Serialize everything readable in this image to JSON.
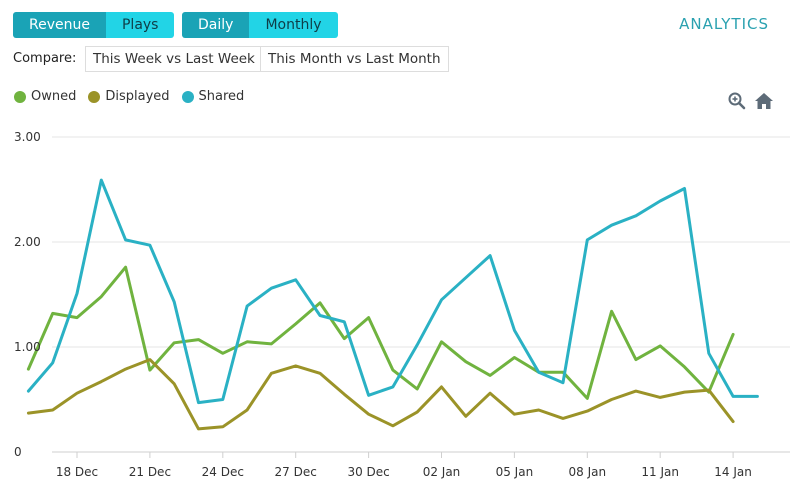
{
  "toolbar": {
    "metric_buttons": [
      {
        "label": "Revenue",
        "active": true
      },
      {
        "label": "Plays",
        "active": false
      }
    ],
    "period_buttons": [
      {
        "label": "Daily",
        "active": true
      },
      {
        "label": "Monthly",
        "active": false
      }
    ],
    "brand": "ANALYTICS"
  },
  "compare": {
    "label": "Compare:",
    "options": [
      "This Week vs Last Week",
      "This Month vs Last Month"
    ]
  },
  "icons": [
    "zoom-in-icon",
    "home-icon"
  ],
  "colors": {
    "accent": "#1aa3b6",
    "accent_light": "#22d4e6",
    "owned": "#70b33f",
    "displayed": "#9b9328",
    "shared": "#2ab1c4"
  },
  "chart_data": {
    "type": "line",
    "x": [
      "2016-12-16",
      "2016-12-17",
      "2016-12-18",
      "2016-12-19",
      "2016-12-20",
      "2016-12-21",
      "2016-12-22",
      "2016-12-23",
      "2016-12-24",
      "2016-12-25",
      "2016-12-26",
      "2016-12-27",
      "2016-12-28",
      "2016-12-29",
      "2016-12-30",
      "2016-12-31",
      "2017-01-01",
      "2017-01-02",
      "2017-01-03",
      "2017-01-04",
      "2017-01-05",
      "2017-01-06",
      "2017-01-07",
      "2017-01-08",
      "2017-01-09",
      "2017-01-10",
      "2017-01-11",
      "2017-01-12",
      "2017-01-13",
      "2017-01-14",
      "2017-01-15"
    ],
    "x_tick_labels": [
      "18 Dec",
      "21 Dec",
      "24 Dec",
      "27 Dec",
      "30 Dec",
      "02 Jan",
      "05 Jan",
      "08 Jan",
      "11 Jan",
      "14 Jan"
    ],
    "y_tick_labels": [
      "0",
      "1.00",
      "2.00",
      "3.00"
    ],
    "ylim": [
      0,
      3
    ],
    "series": [
      {
        "name": "Owned",
        "color": "#70b33f",
        "values": [
          0.79,
          1.32,
          1.28,
          1.48,
          1.76,
          0.78,
          1.04,
          1.07,
          0.94,
          1.05,
          1.03,
          1.22,
          1.42,
          1.08,
          1.28,
          0.78,
          0.6,
          1.05,
          0.86,
          0.73,
          0.9,
          0.76,
          0.76,
          0.51,
          1.34,
          0.88,
          1.01,
          0.81,
          0.57,
          1.12,
          null
        ]
      },
      {
        "name": "Displayed",
        "color": "#9b9328",
        "values": [
          0.37,
          0.4,
          0.56,
          0.67,
          0.79,
          0.88,
          0.65,
          0.22,
          0.24,
          0.4,
          0.75,
          0.82,
          0.75,
          0.55,
          0.36,
          0.25,
          0.38,
          0.62,
          0.34,
          0.56,
          0.36,
          0.4,
          0.32,
          0.39,
          0.5,
          0.58,
          0.52,
          0.57,
          0.59,
          0.29,
          null
        ]
      },
      {
        "name": "Shared",
        "color": "#2ab1c4",
        "values": [
          0.58,
          0.85,
          1.51,
          2.59,
          2.02,
          1.97,
          1.43,
          0.47,
          0.5,
          1.39,
          1.56,
          1.64,
          1.3,
          1.24,
          0.54,
          0.62,
          1.02,
          1.45,
          1.66,
          1.87,
          1.16,
          0.76,
          0.66,
          2.02,
          2.16,
          2.25,
          2.39,
          2.51,
          0.94,
          0.53,
          0.53
        ]
      }
    ],
    "legend_position": "top-left",
    "grid": "horizontal"
  }
}
